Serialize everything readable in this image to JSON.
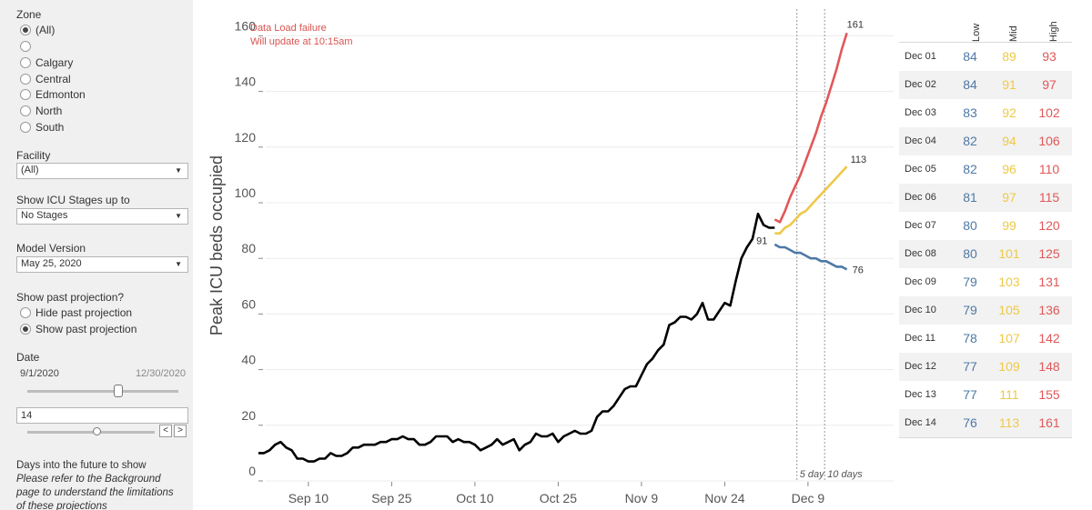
{
  "filters": {
    "zone": {
      "title": "Zone",
      "options": [
        {
          "label": "(All)",
          "selected": true
        },
        {
          "label": "",
          "selected": false
        },
        {
          "label": "Calgary",
          "selected": false
        },
        {
          "label": "Central",
          "selected": false
        },
        {
          "label": "Edmonton",
          "selected": false
        },
        {
          "label": "North",
          "selected": false
        },
        {
          "label": "South",
          "selected": false
        }
      ]
    },
    "facility": {
      "title": "Facility",
      "value": "(All)"
    },
    "icu_stages": {
      "title": "Show ICU Stages up to",
      "value": "No Stages"
    },
    "model_version": {
      "title": "Model Version",
      "value": "May 25, 2020"
    },
    "past_projection": {
      "title": "Show past projection?",
      "options": [
        {
          "label": "Hide past projection",
          "selected": false
        },
        {
          "label": "Show past projection",
          "selected": true
        }
      ]
    },
    "date": {
      "title": "Date",
      "start": "9/1/2020",
      "end": "12/30/2020",
      "level": 0.6
    },
    "days_input": {
      "value": "14",
      "level": 0.55
    },
    "days_future": {
      "title": "Days into the future to show",
      "note": "Please refer to the Background page to understand the limitations of these projections"
    }
  },
  "alert": {
    "line1": "Data Load failure",
    "line2": "Will update at 10:15am"
  },
  "colors": {
    "low": "#4e79a7",
    "mid": "#edc948",
    "high": "#e15759",
    "actual": "#000000"
  },
  "chart_data": {
    "type": "line",
    "ylabel": "Peak ICU beds occupied",
    "ylim": [
      0,
      160
    ],
    "yticks": [
      0,
      20,
      40,
      60,
      80,
      100,
      120,
      140,
      160
    ],
    "xticks": [
      {
        "label": "Sep 10",
        "day": 10
      },
      {
        "label": "Sep 25",
        "day": 25
      },
      {
        "label": "Oct 10",
        "day": 40
      },
      {
        "label": "Oct 25",
        "day": 55
      },
      {
        "label": "Nov 9",
        "day": 70
      },
      {
        "label": "Nov 24",
        "day": 85
      },
      {
        "label": "Dec 9",
        "day": 100
      }
    ],
    "actual": {
      "start_day": 1,
      "values": [
        10,
        10,
        11,
        13,
        14,
        12,
        11,
        8,
        8,
        7,
        7,
        8,
        8,
        10,
        9,
        9,
        10,
        12,
        12,
        13,
        13,
        13,
        14,
        14,
        15,
        15,
        16,
        15,
        15,
        13,
        13,
        14,
        16,
        16,
        16,
        14,
        15,
        14,
        14,
        13,
        11,
        12,
        13,
        15,
        13,
        14,
        15,
        11,
        13,
        14,
        17,
        16,
        16,
        17,
        14,
        16,
        17,
        18,
        17,
        17,
        18,
        23,
        25,
        25,
        27,
        30,
        33,
        34,
        34,
        38,
        42,
        44,
        47,
        49,
        56,
        57,
        59,
        59,
        58,
        60,
        64,
        58,
        58,
        61,
        64,
        63,
        72,
        80,
        84,
        87,
        96,
        92,
        91,
        91
      ]
    },
    "projections": {
      "start_day": 94,
      "start_values": {
        "low": 85,
        "mid": 89,
        "high": 94
      },
      "end_day": 107,
      "low": [
        84,
        84,
        83,
        82,
        82,
        81,
        80,
        80,
        79,
        79,
        78,
        77,
        77,
        76
      ],
      "mid": [
        89,
        91,
        92,
        94,
        96,
        97,
        99,
        101,
        103,
        105,
        107,
        109,
        111,
        113
      ],
      "high": [
        93,
        97,
        102,
        106,
        110,
        115,
        120,
        125,
        131,
        136,
        142,
        148,
        155,
        161
      ]
    },
    "point_labels": {
      "last_actual": "91",
      "high_end": "161",
      "mid_end": "113",
      "low_end": "76"
    },
    "reference_lines": [
      {
        "label": "5 day",
        "day": 98
      },
      {
        "label": "10 days",
        "day": 103
      }
    ]
  },
  "table": {
    "headers": [
      "Low",
      "Mid",
      "High"
    ],
    "rows": [
      {
        "date": "Dec 01",
        "low": "84",
        "mid": "89",
        "high": "93"
      },
      {
        "date": "Dec 02",
        "low": "84",
        "mid": "91",
        "high": "97"
      },
      {
        "date": "Dec 03",
        "low": "83",
        "mid": "92",
        "high": "102"
      },
      {
        "date": "Dec 04",
        "low": "82",
        "mid": "94",
        "high": "106"
      },
      {
        "date": "Dec 05",
        "low": "82",
        "mid": "96",
        "high": "110"
      },
      {
        "date": "Dec 06",
        "low": "81",
        "mid": "97",
        "high": "115"
      },
      {
        "date": "Dec 07",
        "low": "80",
        "mid": "99",
        "high": "120"
      },
      {
        "date": "Dec 08",
        "low": "80",
        "mid": "101",
        "high": "125"
      },
      {
        "date": "Dec 09",
        "low": "79",
        "mid": "103",
        "high": "131"
      },
      {
        "date": "Dec 10",
        "low": "79",
        "mid": "105",
        "high": "136"
      },
      {
        "date": "Dec 11",
        "low": "78",
        "mid": "107",
        "high": "142"
      },
      {
        "date": "Dec 12",
        "low": "77",
        "mid": "109",
        "high": "148"
      },
      {
        "date": "Dec 13",
        "low": "77",
        "mid": "111",
        "high": "155"
      },
      {
        "date": "Dec 14",
        "low": "76",
        "mid": "113",
        "high": "161"
      }
    ]
  }
}
